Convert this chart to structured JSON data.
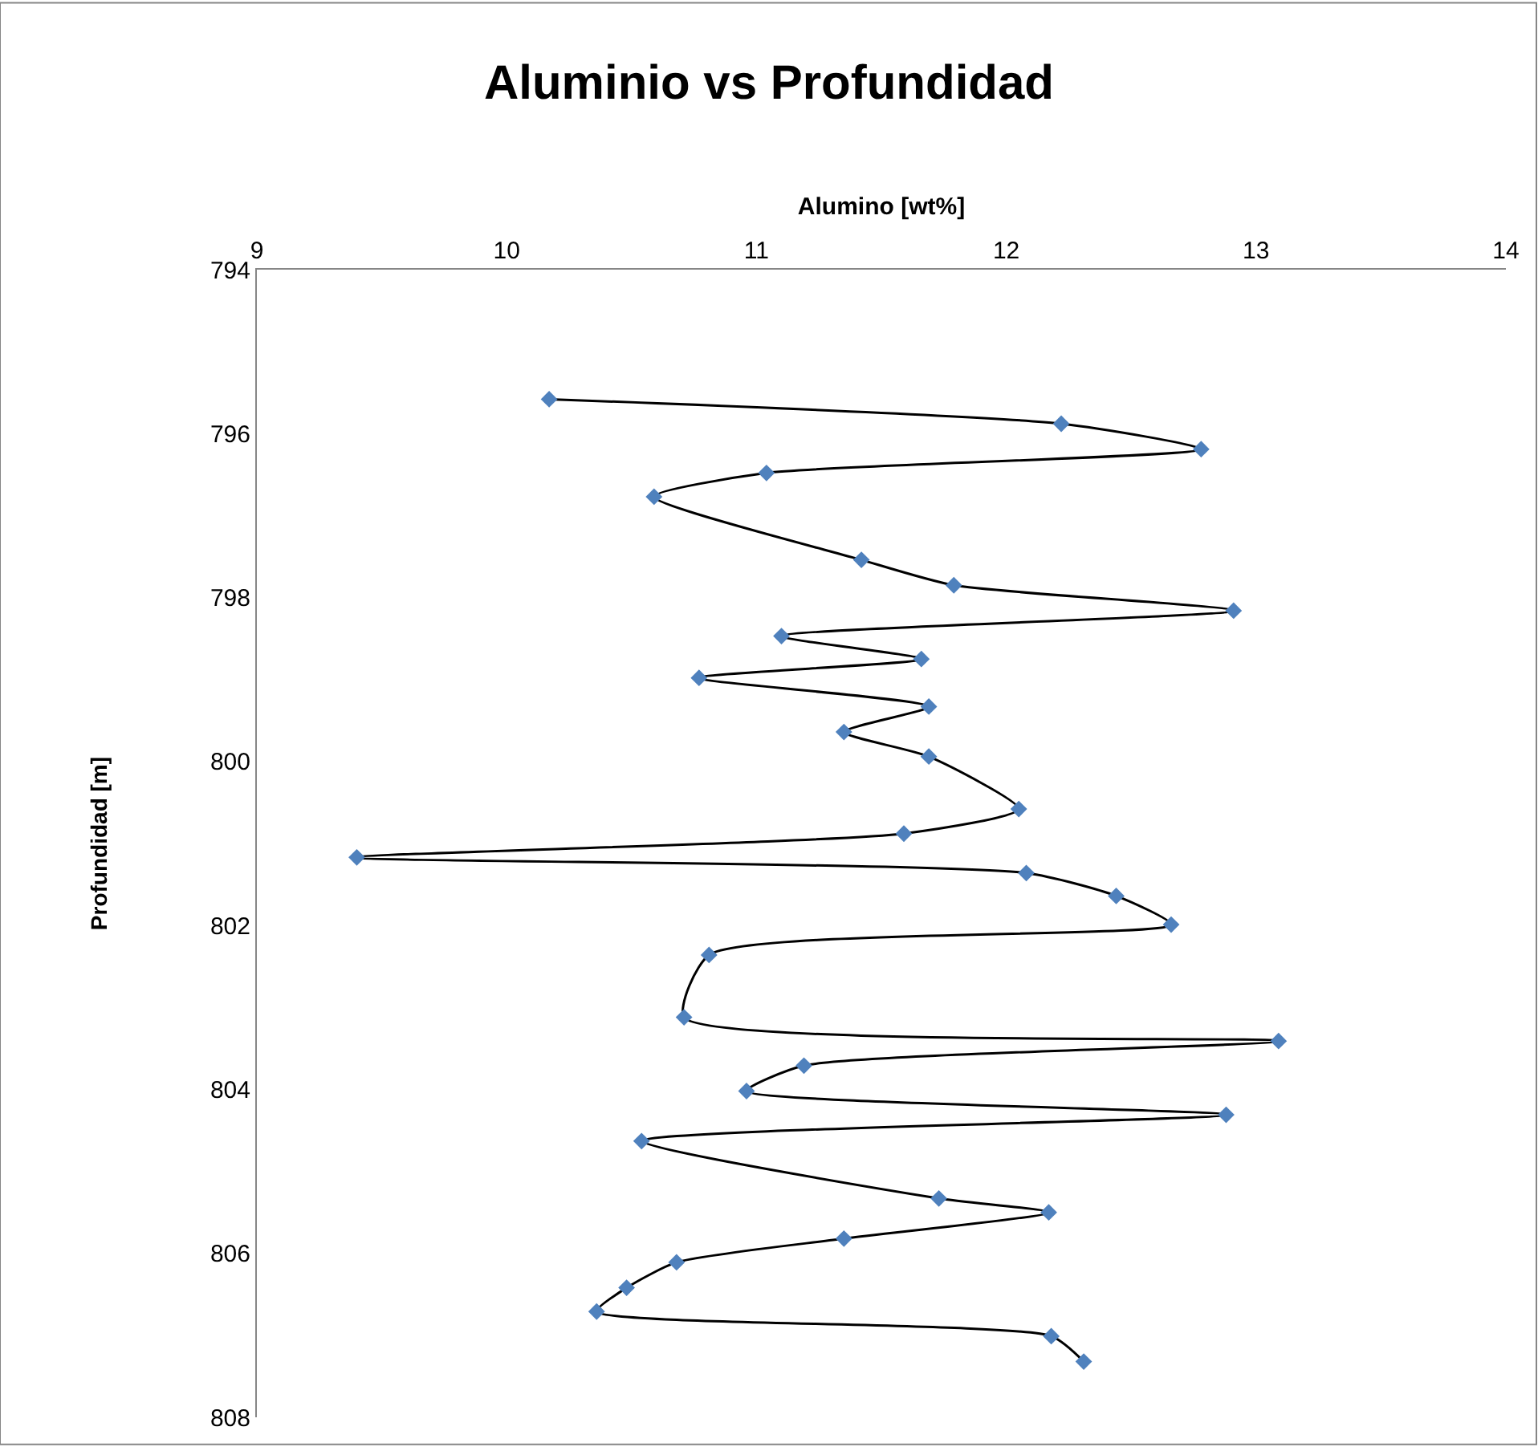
{
  "chart_data": {
    "type": "line",
    "title": "Aluminio vs Profundidad",
    "xlabel": "Alumino [wt%]",
    "ylabel": "Profundidad [m]",
    "xlim": [
      9,
      14
    ],
    "xticks": [
      9,
      10,
      11,
      12,
      13,
      14
    ],
    "ylim": [
      808,
      794
    ],
    "yticks": [
      794,
      796,
      798,
      800,
      802,
      804,
      806,
      808
    ],
    "marker": "diamond",
    "line_style": "solid",
    "series": [
      {
        "color": "#4f81bd",
        "x": [
          10.17,
          12.22,
          12.78,
          11.04,
          10.59,
          11.42,
          11.79,
          12.91,
          11.1,
          11.66,
          10.77,
          11.69,
          11.35,
          11.69,
          12.05,
          11.59,
          9.4,
          12.08,
          12.44,
          12.66,
          10.81,
          10.71,
          13.09,
          11.19,
          10.96,
          12.88,
          10.54,
          11.73,
          12.17,
          11.35,
          10.68,
          10.48,
          10.36,
          12.18,
          12.31
        ],
        "values": [
          795.58,
          795.88,
          796.19,
          796.48,
          796.77,
          797.54,
          797.85,
          798.16,
          798.47,
          798.75,
          798.98,
          799.33,
          799.64,
          799.94,
          800.58,
          800.88,
          801.17,
          801.36,
          801.64,
          801.99,
          802.36,
          803.12,
          803.41,
          803.71,
          804.02,
          804.31,
          804.63,
          805.33,
          805.5,
          805.82,
          806.11,
          806.42,
          806.71,
          807.01,
          807.32
        ]
      }
    ]
  }
}
